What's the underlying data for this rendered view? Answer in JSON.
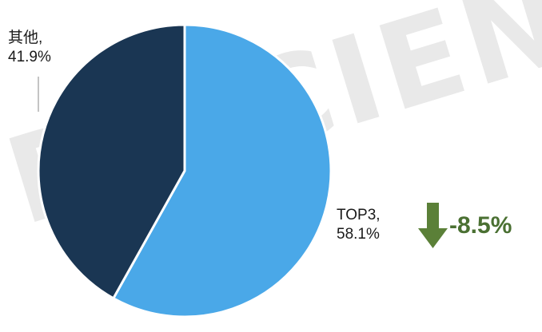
{
  "chart_data": {
    "type": "pie",
    "slices": [
      {
        "label": "TOP3",
        "value": 58.1,
        "display": "58.1%",
        "color": "#4aa8e8"
      },
      {
        "label": "其他",
        "value": 41.9,
        "display": "41.9%",
        "color": "#1a3653"
      }
    ],
    "start": "12 o'clock, clockwise",
    "annotation": {
      "text": "-8.5%",
      "icon": "down-arrow-icon",
      "color": "#4a7032",
      "arrow_color": "#5b8038"
    }
  },
  "labels": {
    "top3_name": "TOP3,",
    "top3_value": "58.1%",
    "other_name": "其他,",
    "other_value": "41.9%"
  },
  "watermark": "DISCIEN"
}
